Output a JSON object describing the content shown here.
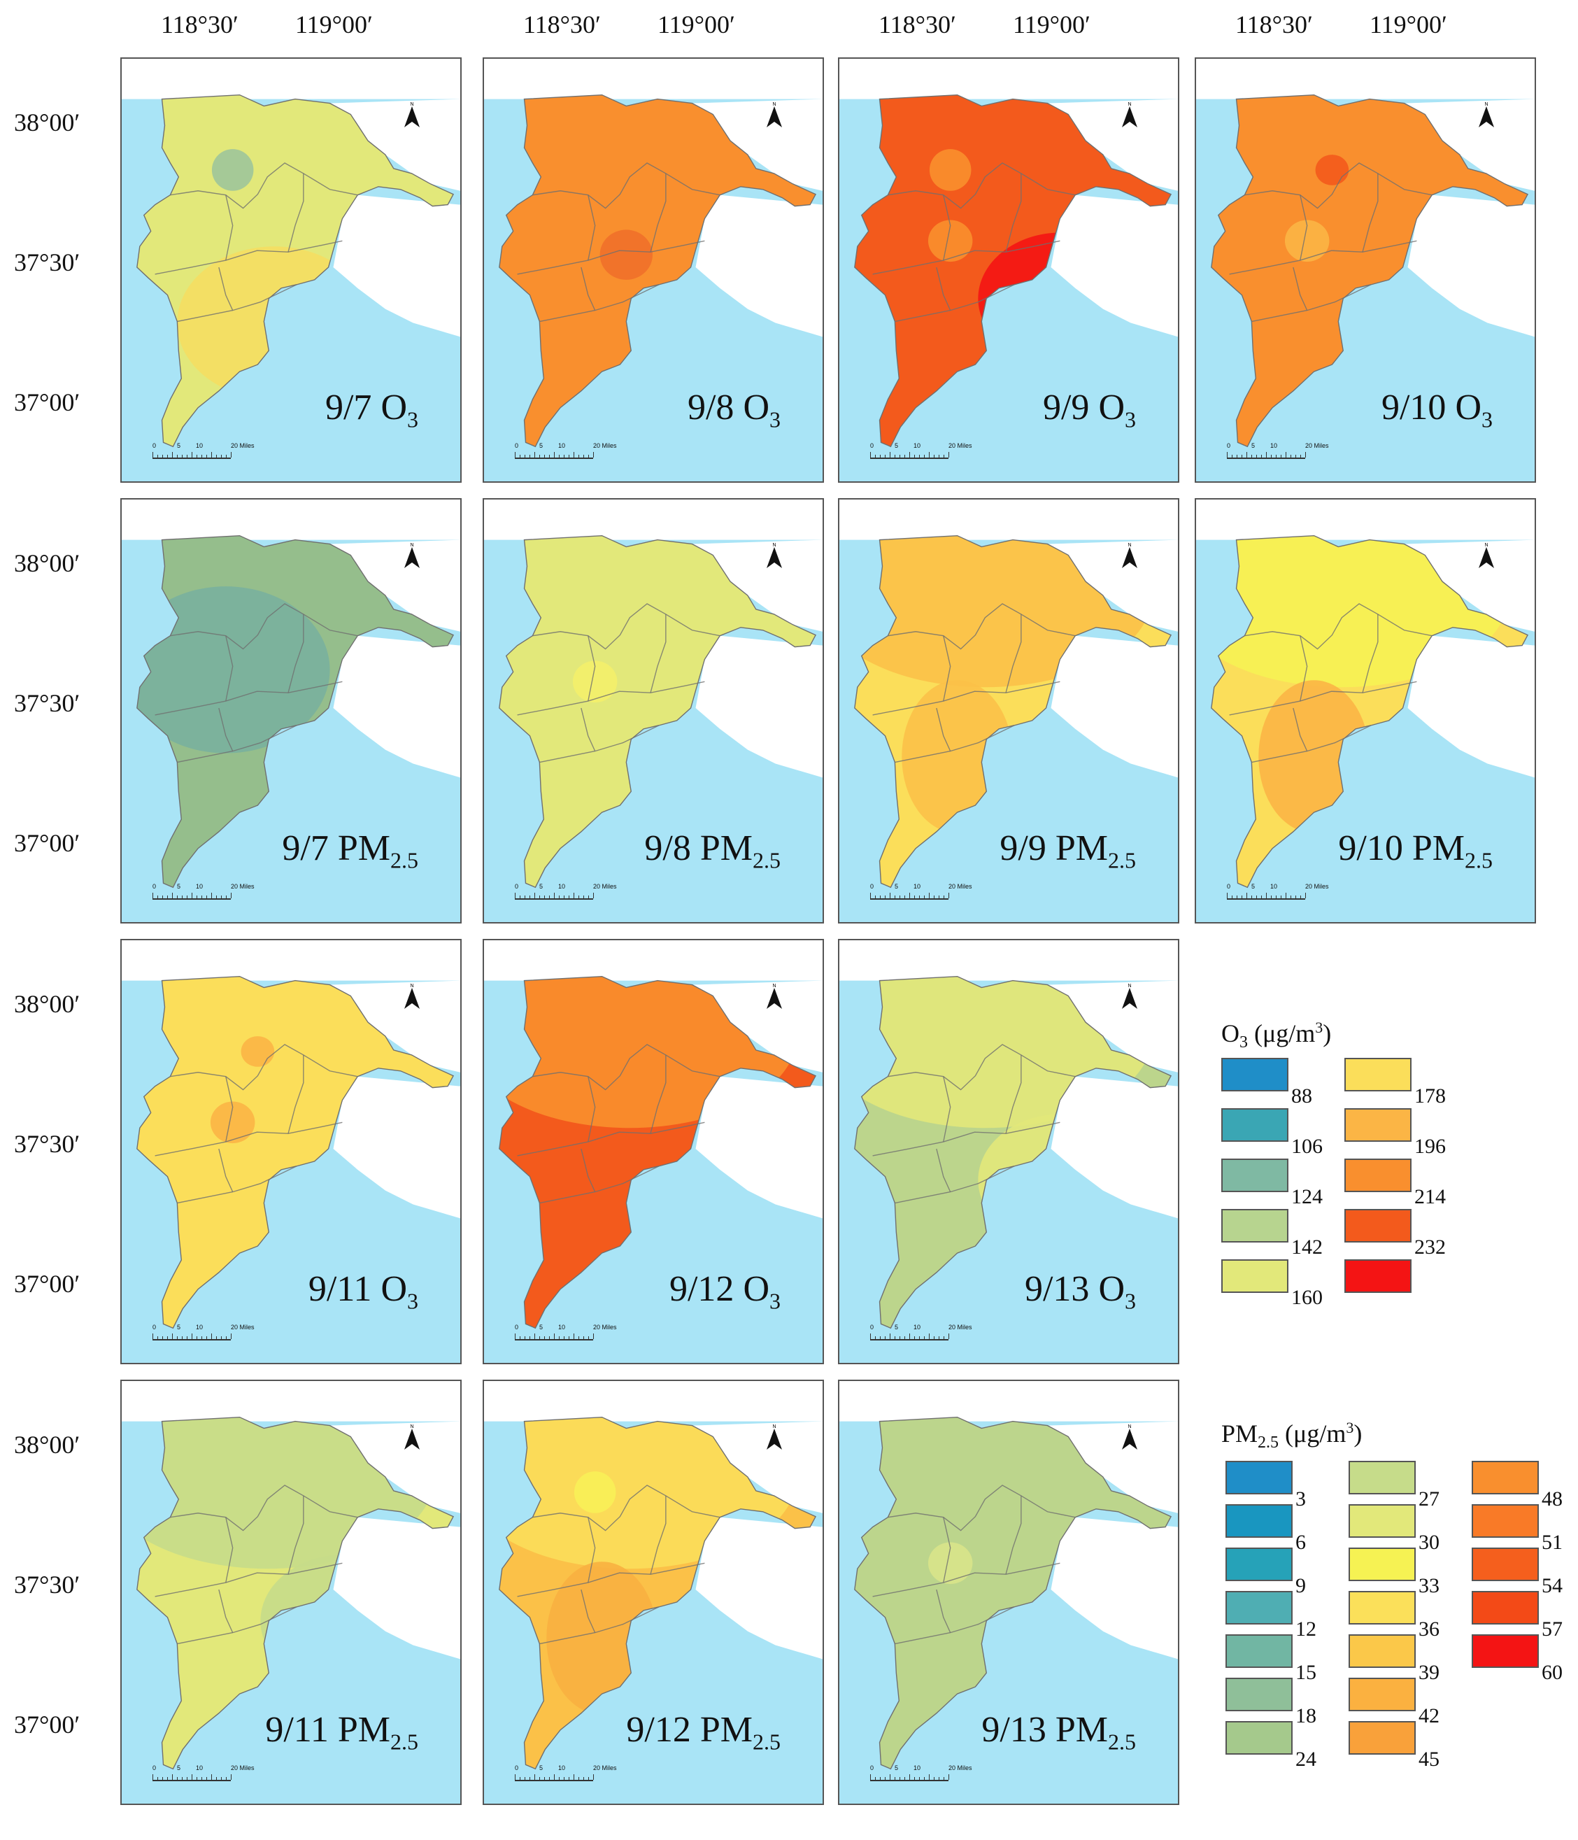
{
  "axes": {
    "lon_labels": [
      "118°30′",
      "119°00′"
    ],
    "lat_labels": [
      "38°00′",
      "37°30′",
      "37°00′"
    ]
  },
  "panels": [
    {
      "date": "9/7",
      "pollutant": "O",
      "sub": "3",
      "base": "#e2e87a",
      "blobs": [
        {
          "c": "#9fc59a",
          "k": "nw"
        },
        {
          "c": "#f5de62",
          "k": "sw"
        }
      ]
    },
    {
      "date": "9/8",
      "pollutant": "O",
      "sub": "3",
      "base": "#f98f2e",
      "blobs": [
        {
          "c": "#f0702a",
          "k": "c"
        }
      ]
    },
    {
      "date": "9/9",
      "pollutant": "O",
      "sub": "3",
      "base": "#f35a1c",
      "blobs": [
        {
          "c": "#f98f2e",
          "k": "nw"
        },
        {
          "c": "#f98f2e",
          "k": "w"
        },
        {
          "c": "#f41414",
          "k": "se"
        }
      ]
    },
    {
      "date": "9/10",
      "pollutant": "O",
      "sub": "3",
      "base": "#f98f2e",
      "blobs": [
        {
          "c": "#f35a1c",
          "k": "n"
        },
        {
          "c": "#fbb545",
          "k": "w"
        }
      ]
    },
    {
      "date": "9/7",
      "pollutant": "PM",
      "sub": "2.5",
      "base": "#95be8c",
      "blobs": [
        {
          "c": "#79b09d",
          "k": "nwl"
        }
      ]
    },
    {
      "date": "9/8",
      "pollutant": "PM",
      "sub": "2.5",
      "base": "#e2e87a",
      "blobs": [
        {
          "c": "#f4f06a",
          "k": "w"
        }
      ]
    },
    {
      "date": "9/9",
      "pollutant": "PM",
      "sub": "2.5",
      "base": "#fbde5a",
      "blobs": [
        {
          "c": "#fbc148",
          "k": "nl"
        },
        {
          "c": "#fbc148",
          "k": "s"
        }
      ]
    },
    {
      "date": "9/10",
      "pollutant": "PM",
      "sub": "2.5",
      "base": "#fbde5a",
      "blobs": [
        {
          "c": "#f6f253",
          "k": "nl"
        },
        {
          "c": "#fbb545",
          "k": "s"
        }
      ]
    },
    {
      "date": "9/11",
      "pollutant": "O",
      "sub": "3",
      "base": "#fbde5a",
      "blobs": [
        {
          "c": "#fbb545",
          "k": "n"
        },
        {
          "c": "#fbb545",
          "k": "w"
        }
      ]
    },
    {
      "date": "9/12",
      "pollutant": "O",
      "sub": "3",
      "base": "#f35a1c",
      "blobs": [
        {
          "c": "#f98f2e",
          "k": "nl"
        }
      ]
    },
    {
      "date": "9/13",
      "pollutant": "O",
      "sub": "3",
      "base": "#bcd58c",
      "blobs": [
        {
          "c": "#e2e87a",
          "k": "nl"
        },
        {
          "c": "#e2e87a",
          "k": "se"
        }
      ]
    },
    {
      "date": "9/11",
      "pollutant": "PM",
      "sub": "2.5",
      "base": "#e2e87a",
      "blobs": [
        {
          "c": "#c6dc8a",
          "k": "nl"
        },
        {
          "c": "#c6dc8a",
          "k": "se"
        }
      ]
    },
    {
      "date": "9/12",
      "pollutant": "PM",
      "sub": "2.5",
      "base": "#fbc148",
      "blobs": [
        {
          "c": "#fbde5a",
          "k": "nl"
        },
        {
          "c": "#f8ef58",
          "k": "nw"
        },
        {
          "c": "#f8b040",
          "k": "s"
        }
      ]
    },
    {
      "date": "9/13",
      "pollutant": "PM",
      "sub": "2.5",
      "base": "#bcd58c",
      "blobs": [
        {
          "c": "#d8e48a",
          "k": "w"
        }
      ]
    }
  ],
  "scale_bar": {
    "ticks": [
      "0",
      "5",
      "10",
      "20 Miles"
    ]
  },
  "north_label": "N",
  "legend_o3": {
    "title_main": "O",
    "title_sub": "3",
    "title_unit": " (μg/m",
    "title_sup": "3",
    "title_end": ")",
    "colors": [
      "#1f8ec8",
      "#3aa6b4",
      "#7fb9a3",
      "#b7d48f",
      "#e2e87a",
      "#fbde5a",
      "#fbb545",
      "#f98f2e",
      "#f35a1c",
      "#f41414"
    ],
    "values": [
      "88",
      "106",
      "124",
      "142",
      "160",
      "178",
      "196",
      "214",
      "232"
    ]
  },
  "legend_pm": {
    "title_main": "PM",
    "title_sub": "2.5",
    "title_unit": " (μg/m",
    "title_sup": "3",
    "title_end": ")",
    "colors": [
      "#1f8ec8",
      "#1996c0",
      "#26a2b8",
      "#4faeb3",
      "#71b6a3",
      "#8fbf99",
      "#a5c98c",
      "#c6dc8a",
      "#e2e87a",
      "#f6f253",
      "#fbe05a",
      "#fbc849",
      "#fbb140",
      "#f9a13a",
      "#f98f2e",
      "#f97a27",
      "#f55f1d",
      "#f34a17",
      "#f41414"
    ],
    "values": [
      "3",
      "6",
      "9",
      "12",
      "15",
      "18",
      "24",
      "27",
      "30",
      "33",
      "36",
      "39",
      "42",
      "45",
      "48",
      "51",
      "54",
      "57",
      "60"
    ]
  }
}
